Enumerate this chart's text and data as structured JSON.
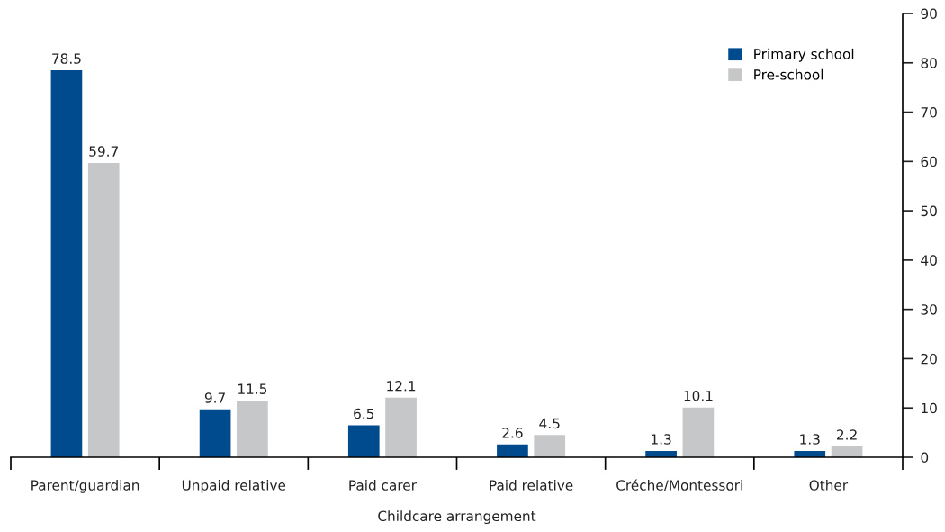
{
  "chart_data": {
    "type": "bar",
    "xlabel": "Childcare arrangement",
    "categories": [
      "Parent/guardian",
      "Unpaid relative",
      "Paid carer",
      "Paid relative",
      "Créche/Montessori",
      "Other"
    ],
    "series": [
      {
        "name": "Primary school",
        "color": "#004b8d",
        "values": [
          78.5,
          9.7,
          6.5,
          2.6,
          1.3,
          1.3
        ]
      },
      {
        "name": "Pre-school",
        "color": "#c6c7c9",
        "values": [
          59.7,
          11.5,
          12.1,
          4.5,
          10.1,
          2.2
        ]
      }
    ],
    "ylim": [
      0,
      90
    ],
    "yticks": [
      0,
      10,
      20,
      30,
      40,
      50,
      60,
      70,
      80,
      90
    ],
    "grid": false,
    "legend": "top right",
    "data_labels": true
  }
}
